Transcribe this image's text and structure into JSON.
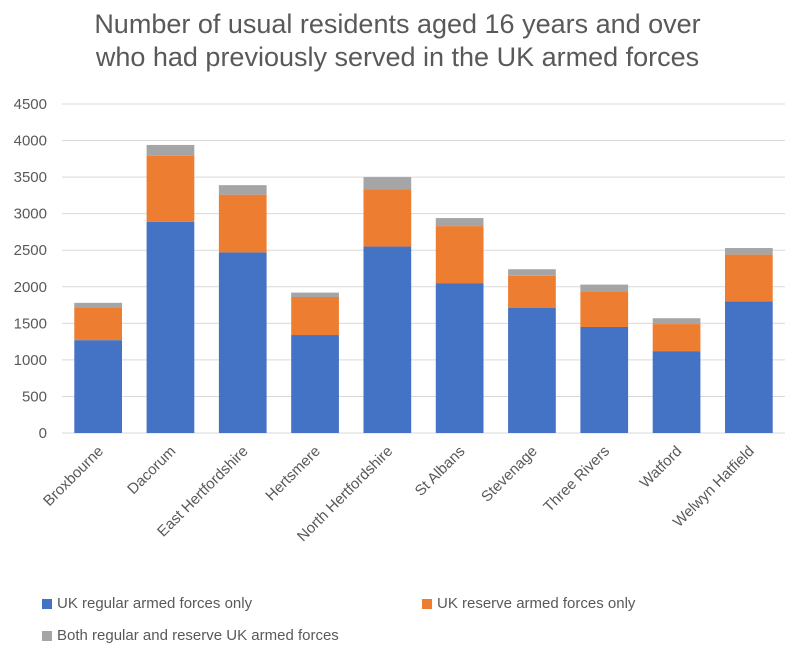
{
  "chart_data": {
    "type": "bar",
    "stacked": true,
    "title_lines": [
      "Number of usual residents aged 16 years and over",
      "who had previously served in the UK armed forces"
    ],
    "categories": [
      "Broxbourne",
      "Dacorum",
      "East Hertfordshire",
      "Hertsmere",
      "North Hertfordshire",
      "St Albans",
      "Stevenage",
      "Three Rivers",
      "Watford",
      "Welwyn Hatfield"
    ],
    "series": [
      {
        "name": "UK regular armed forces only",
        "color": "#4472C4",
        "values": [
          1270,
          2890,
          2470,
          1340,
          2550,
          2050,
          1710,
          1450,
          1120,
          1800
        ]
      },
      {
        "name": "UK reserve armed forces only",
        "color": "#ED7D31",
        "values": [
          440,
          900,
          790,
          520,
          780,
          780,
          440,
          490,
          370,
          640
        ]
      },
      {
        "name": "Both regular and reserve UK armed forces",
        "color": "#A5A5A5",
        "values": [
          70,
          150,
          130,
          60,
          170,
          110,
          90,
          90,
          80,
          90
        ]
      }
    ],
    "ylim": [
      0,
      4500
    ],
    "yticks": [
      0,
      500,
      1000,
      1500,
      2000,
      2500,
      3000,
      3500,
      4000,
      4500
    ],
    "grid": true,
    "legend_position": "bottom"
  }
}
